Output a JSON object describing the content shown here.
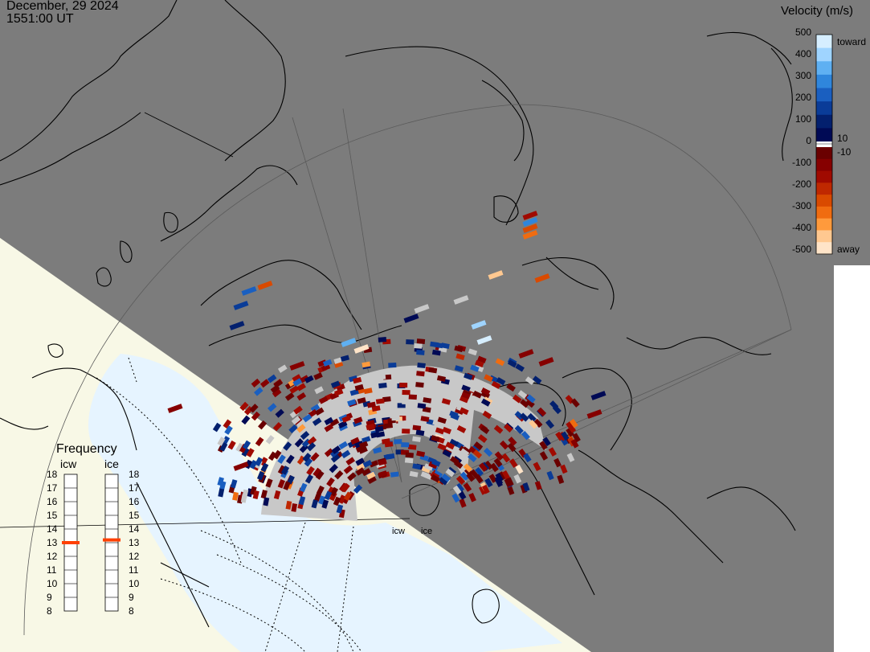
{
  "header": {
    "date": "December, 29 2024",
    "time": "1551:00 UT"
  },
  "legend": {
    "title": "Velocity (m/s)",
    "ticks_left": [
      "500",
      "400",
      "300",
      "200",
      "100",
      "0",
      "-100",
      "-200",
      "-300",
      "-400",
      "-500"
    ],
    "label_toward": "toward",
    "label_away": "away",
    "label_pos_threshold": "10",
    "label_neg_threshold": "-10",
    "colors_toward": [
      "#d6eeff",
      "#9fd4ff",
      "#5fb0f2",
      "#2f86dc",
      "#1a5fc0",
      "#0a3c98",
      "#03206e",
      "#000a55"
    ],
    "colors_away": [
      "#6a0000",
      "#860000",
      "#a00a00",
      "#bf2800",
      "#d94a00",
      "#f06c10",
      "#ff9a3c",
      "#ffc890",
      "#ffe4c8"
    ]
  },
  "frequency": {
    "title": "Frequency",
    "radar_a": "icw",
    "radar_b": "ice",
    "scale": [
      "18",
      "17",
      "16",
      "15",
      "14",
      "13",
      "12",
      "11",
      "10",
      "9",
      "8"
    ],
    "icw_value": 13,
    "ice_value": 13.2
  },
  "radar_labels": {
    "a": "icw",
    "b": "ice"
  },
  "colors": {
    "background_night": "#7c7c7c",
    "land_day": "#f8f8e6",
    "ocean_day": "#e6f4ff",
    "ground_scatter": "#c8c8c8",
    "frequency_marker": "#ff4000"
  }
}
